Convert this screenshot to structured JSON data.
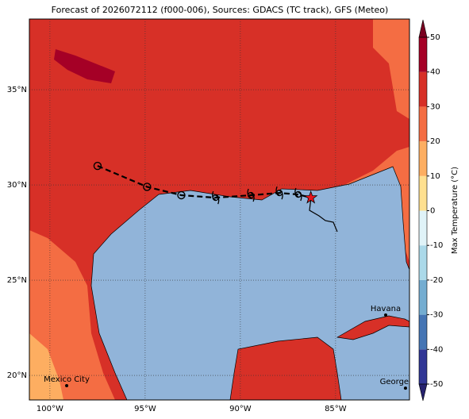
{
  "title": "Forecast of 2026072112 (f000-006), Sources: GDACS (TC track), GFS (Meteo)",
  "map": {
    "xlim": [
      -101.08,
      -81.12
    ],
    "ylim": [
      18.71,
      38.71
    ],
    "grid": true,
    "xticks": [
      {
        "value": -100,
        "label": "100°W"
      },
      {
        "value": -95,
        "label": "95°W"
      },
      {
        "value": -90,
        "label": "90°W"
      },
      {
        "value": -85,
        "label": "85°W"
      }
    ],
    "yticks": [
      {
        "value": 20,
        "label": "20°N"
      },
      {
        "value": 25,
        "label": "25°N"
      },
      {
        "value": 30,
        "label": "30°N"
      },
      {
        "value": 35,
        "label": "35°N"
      }
    ],
    "track": {
      "color": "#000000",
      "lon": [
        -97.5,
        -94.9,
        -93.1,
        -91.3,
        -89.45,
        -87.95,
        -86.96,
        -86.3
      ],
      "lat": [
        31.0,
        29.9,
        29.46,
        29.33,
        29.46,
        29.58,
        29.5,
        29.33
      ],
      "symbols": [
        "circle",
        "circle",
        "circle",
        "storm",
        "storm",
        "storm",
        "storm",
        "star"
      ]
    },
    "cities": [
      {
        "name": "Havana",
        "lon": -82.37,
        "lat": 23.17
      },
      {
        "name": "Mexico City",
        "lon": -99.12,
        "lat": 19.46
      },
      {
        "name": "George Town",
        "lon": -81.33,
        "lat": 19.33
      }
    ]
  },
  "colorbar": {
    "label": "Max Temperature (°C)",
    "lim": [
      -50,
      50
    ],
    "levels": [
      -50,
      -40,
      -30,
      -20,
      -10,
      0,
      10,
      20,
      30,
      40,
      50
    ],
    "colors": [
      "#313695",
      "#4575b4",
      "#74add1",
      "#abd9e9",
      "#e0f3f8",
      "#fee090",
      "#fdae61",
      "#f46d43",
      "#d73027",
      "#a50026"
    ],
    "under_color": "#26226e",
    "over_color": "#7a0020",
    "ticks": [
      -50,
      -40,
      -30,
      -20,
      -10,
      0,
      10,
      20,
      30,
      40,
      50
    ]
  }
}
